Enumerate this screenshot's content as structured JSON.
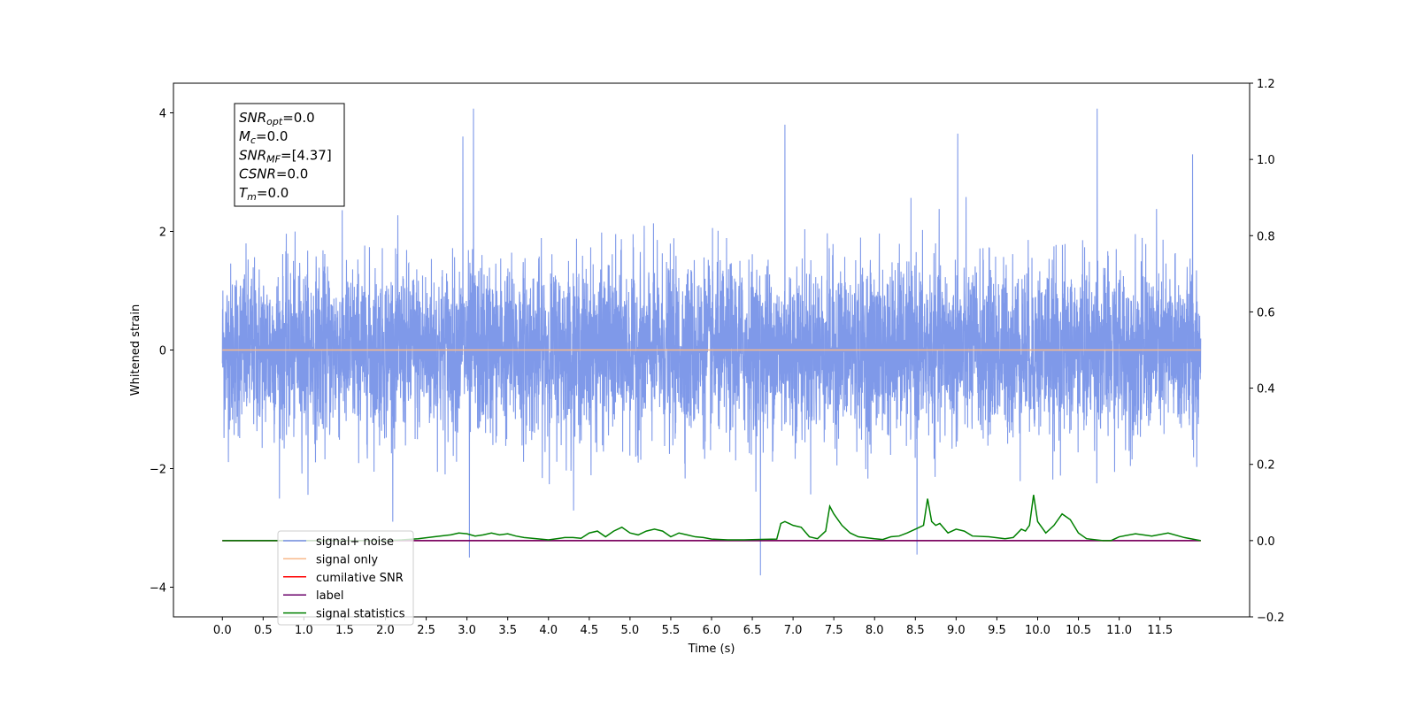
{
  "chart_data": {
    "type": "line",
    "xlabel": "Time (s)",
    "ylabel": "Whitened strain",
    "xlim": [
      -0.6,
      12.6
    ],
    "ylim": [
      -4.5,
      4.5
    ],
    "ylim_right": [
      -0.2,
      1.2
    ],
    "x_ticks": [
      0.0,
      0.5,
      1.0,
      1.5,
      2.0,
      2.5,
      3.0,
      3.5,
      4.0,
      4.5,
      5.0,
      5.5,
      6.0,
      6.5,
      7.0,
      7.5,
      8.0,
      8.5,
      9.0,
      9.5,
      10.0,
      10.5,
      11.0,
      11.5
    ],
    "x_tick_labels": [
      "0.0",
      "0.5",
      "1.0",
      "1.5",
      "2.0",
      "2.5",
      "3.0",
      "3.5",
      "4.0",
      "4.5",
      "5.0",
      "5.5",
      "6.0",
      "6.5",
      "7.0",
      "7.5",
      "8.0",
      "8.5",
      "9.0",
      "9.5",
      "10.0",
      "10.5",
      "11.0",
      "11.5"
    ],
    "y_ticks": [
      4,
      2,
      0,
      -2,
      -4
    ],
    "y_tick_labels": [
      "4",
      "2",
      "0",
      "−2",
      "−4"
    ],
    "y_ticks_right": [
      1.2,
      1.0,
      0.8,
      0.6,
      0.4,
      0.2,
      0.0,
      -0.2
    ],
    "y_tick_labels_right": [
      "1.2",
      "1.0",
      "0.8",
      "0.6",
      "0.4",
      "0.2",
      "0.0",
      "−0.2"
    ],
    "grid": false,
    "legend_position": "lower-left",
    "series": [
      {
        "name": "signal+ noise",
        "color": "#7893e8",
        "axis": "left",
        "kind": "noise",
        "x_range": [
          0.0,
          12.0
        ],
        "envelope": {
          "typical_min": -2.0,
          "typical_max": 2.0
        },
        "notable_peaks": [
          {
            "x": 3.08,
            "y": 4.07
          },
          {
            "x": 10.73,
            "y": 4.07
          },
          {
            "x": 6.9,
            "y": 3.8
          },
          {
            "x": 2.95,
            "y": 3.6
          },
          {
            "x": 9.02,
            "y": 3.65
          },
          {
            "x": 11.9,
            "y": 3.3
          },
          {
            "x": 3.03,
            "y": -3.5
          },
          {
            "x": 6.6,
            "y": -3.8
          },
          {
            "x": 8.52,
            "y": -3.45
          }
        ]
      },
      {
        "name": "signal only",
        "color": "#f8b98a",
        "axis": "left",
        "x": [
          0.0,
          12.0
        ],
        "y": [
          0.0,
          0.0
        ]
      },
      {
        "name": "cumilative SNR",
        "color": "#ff0000",
        "axis": "right",
        "x": [
          0.0,
          12.0
        ],
        "y": [
          0.0,
          0.0
        ]
      },
      {
        "name": "label",
        "color": "#6a006a",
        "axis": "right",
        "x": [
          0.0,
          12.0
        ],
        "y": [
          0.0,
          0.0
        ]
      },
      {
        "name": "signal statistics",
        "color": "#008000",
        "axis": "right",
        "x": [
          0.0,
          0.5,
          1.0,
          1.5,
          2.0,
          2.2,
          2.4,
          2.6,
          2.8,
          2.9,
          3.0,
          3.1,
          3.2,
          3.3,
          3.4,
          3.5,
          3.6,
          3.7,
          3.8,
          3.9,
          4.0,
          4.1,
          4.2,
          4.3,
          4.4,
          4.5,
          4.6,
          4.7,
          4.8,
          4.9,
          5.0,
          5.1,
          5.2,
          5.3,
          5.4,
          5.5,
          5.6,
          5.7,
          5.8,
          5.9,
          6.0,
          6.2,
          6.4,
          6.6,
          6.8,
          6.85,
          6.9,
          6.95,
          7.0,
          7.1,
          7.2,
          7.3,
          7.4,
          7.45,
          7.5,
          7.6,
          7.7,
          7.8,
          8.0,
          8.1,
          8.2,
          8.3,
          8.4,
          8.5,
          8.6,
          8.65,
          8.7,
          8.75,
          8.8,
          8.9,
          9.0,
          9.1,
          9.2,
          9.4,
          9.6,
          9.7,
          9.8,
          9.85,
          9.9,
          9.95,
          10.0,
          10.1,
          10.2,
          10.3,
          10.4,
          10.5,
          10.6,
          10.8,
          10.9,
          11.0,
          11.2,
          11.4,
          11.6,
          11.8,
          12.0
        ],
        "y": [
          0.0,
          0.0,
          0.0,
          0.0,
          0.0,
          0.002,
          0.005,
          0.01,
          0.015,
          0.02,
          0.018,
          0.012,
          0.015,
          0.02,
          0.015,
          0.018,
          0.012,
          0.008,
          0.006,
          0.004,
          0.002,
          0.005,
          0.008,
          0.008,
          0.006,
          0.02,
          0.025,
          0.01,
          0.025,
          0.035,
          0.02,
          0.015,
          0.025,
          0.03,
          0.025,
          0.01,
          0.02,
          0.015,
          0.01,
          0.008,
          0.004,
          0.002,
          0.002,
          0.003,
          0.004,
          0.045,
          0.05,
          0.045,
          0.04,
          0.035,
          0.01,
          0.005,
          0.025,
          0.09,
          0.07,
          0.04,
          0.02,
          0.01,
          0.005,
          0.003,
          0.01,
          0.012,
          0.02,
          0.03,
          0.04,
          0.11,
          0.05,
          0.04,
          0.045,
          0.02,
          0.03,
          0.025,
          0.012,
          0.01,
          0.005,
          0.008,
          0.03,
          0.025,
          0.04,
          0.12,
          0.05,
          0.02,
          0.04,
          0.07,
          0.055,
          0.02,
          0.005,
          0.0,
          0.0,
          0.01,
          0.018,
          0.012,
          0.02,
          0.008,
          0.0
        ]
      }
    ],
    "annotation": {
      "lines": [
        {
          "base": "SNR",
          "sub": "opt",
          "rest": "=0.0"
        },
        {
          "base": "M",
          "sub": "c",
          "rest": "=0.0"
        },
        {
          "base": "SNR",
          "sub": "MF",
          "rest": "=[4.37]"
        },
        {
          "base": "CSNR",
          "sub": "",
          "rest": "=0.0"
        },
        {
          "base": "T",
          "sub": "m",
          "rest": "=0.0"
        }
      ]
    },
    "legend": [
      {
        "label": "signal+ noise",
        "color": "#7893e8"
      },
      {
        "label": "signal only",
        "color": "#f8b98a"
      },
      {
        "label": "cumilative SNR",
        "color": "#ff0000"
      },
      {
        "label": "label",
        "color": "#6a006a"
      },
      {
        "label": "signal statistics",
        "color": "#008000"
      }
    ]
  }
}
